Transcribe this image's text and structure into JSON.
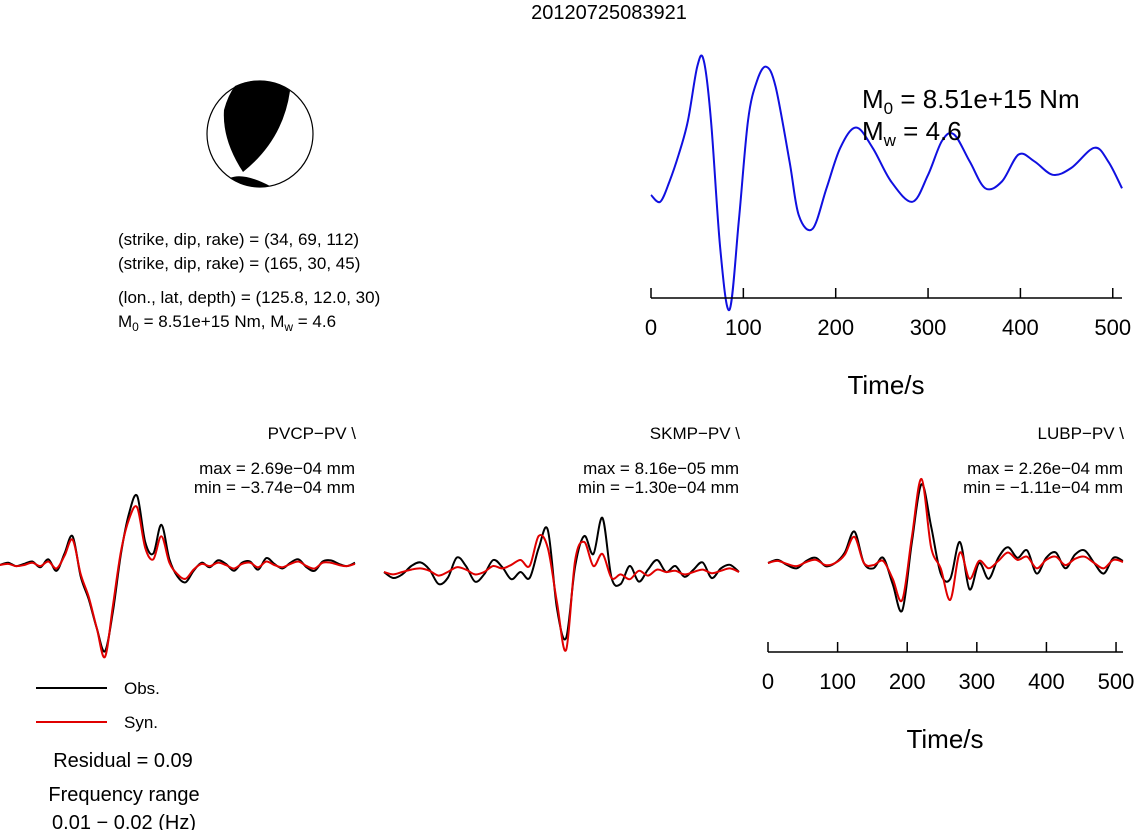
{
  "title": "20120725083921",
  "colors": {
    "observed": "#000000",
    "synthetic": "#e00000",
    "stf": "#1010e0",
    "fault_compression": "#000000"
  },
  "mechanism": {
    "plane1": "(strike, dip, rake) = (34, 69, 112)",
    "plane2": "(strike, dip, rake) = (165, 30, 45)",
    "location": "(lon., lat, depth) = (125.8, 12.0, 30)",
    "moment_text": {
      "m0_label": "M",
      "m0_sub": "0",
      "m0_value": " = 8.51e+15 Nm, M",
      "mw_sub": "w",
      "mw_value": " = 4.6"
    }
  },
  "stf_panel": {
    "m0": {
      "label": "M",
      "sub": "0",
      "value": " = 8.51e+15 Nm"
    },
    "mw": {
      "label": "M",
      "sub": "w",
      "value": " = 4.6"
    },
    "xlabel": "Time/s"
  },
  "legend": {
    "obs": "Obs.",
    "syn": "Syn."
  },
  "residual": "Residual = 0.09",
  "freq_label": "Frequency range",
  "freq_range": "0.01 − 0.02 (Hz)",
  "stations": [
    {
      "name": "PVCP−PV \\",
      "max": "max = 2.69e−04 mm",
      "min": "min = −3.74e−04 mm"
    },
    {
      "name": "SKMP−PV \\",
      "max": "max = 8.16e−05 mm",
      "min": "min = −1.30e−04 mm"
    },
    {
      "name": "LUBP−PV \\",
      "max": "max = 2.26e−04 mm",
      "min": "min = −1.11e−04 mm"
    }
  ],
  "waveform_axis": {
    "ticks": [
      "0",
      "100",
      "200",
      "300",
      "400",
      "500"
    ],
    "xlabel": "Time/s"
  },
  "chart_data": [
    {
      "type": "line",
      "title": "",
      "xlabel": "Time/s",
      "xlim": [
        0,
        510
      ],
      "x_ticks": [
        0,
        100,
        200,
        300,
        400,
        500
      ],
      "series": [
        {
          "x": [
            0,
            10,
            20,
            30,
            40,
            50,
            57,
            65,
            75,
            85,
            95,
            105,
            115,
            125,
            135,
            150,
            160,
            175,
            190,
            205,
            222,
            240,
            260,
            283,
            300,
            315,
            328,
            345,
            362,
            380,
            398,
            415,
            435,
            455,
            480,
            495,
            510
          ],
          "y": [
            0.0,
            -0.05,
            0.1,
            0.3,
            0.55,
            0.95,
            1.0,
            0.55,
            -0.4,
            -0.85,
            -0.2,
            0.55,
            0.85,
            0.95,
            0.8,
            0.25,
            -0.15,
            -0.25,
            0.05,
            0.35,
            0.5,
            0.35,
            0.1,
            -0.05,
            0.15,
            0.4,
            0.45,
            0.25,
            0.05,
            0.1,
            0.3,
            0.25,
            0.15,
            0.2,
            0.35,
            0.25,
            0.05
          ]
        }
      ]
    },
    {
      "type": "line",
      "title": "PVCP−PV \\",
      "x_units": "samples",
      "series": [
        {
          "name": "Obs.",
          "values": [
            0,
            0.02,
            -0.01,
            0.01,
            0.03,
            -0.02,
            0.05,
            -0.05,
            0.1,
            0.25,
            -0.1,
            -0.3,
            -0.55,
            -0.75,
            -0.4,
            0.1,
            0.45,
            0.6,
            0.2,
            0.1,
            0.35,
            0.05,
            -0.1,
            -0.15,
            -0.05,
            0.02,
            -0.02,
            0.04,
            0.01,
            -0.05,
            0.02,
            0.03,
            -0.04,
            0.06,
            0.01,
            -0.03,
            0.02,
            0.05,
            -0.02,
            -0.05,
            0.03,
            0.04,
            0.01,
            -0.01,
            0.02
          ]
        },
        {
          "name": "Syn.",
          "values": [
            0,
            0.01,
            -0.01,
            0.0,
            0.02,
            -0.01,
            0.03,
            -0.03,
            0.08,
            0.22,
            -0.08,
            -0.28,
            -0.55,
            -0.8,
            -0.35,
            0.12,
            0.4,
            0.5,
            0.15,
            0.05,
            0.25,
            0.02,
            -0.08,
            -0.12,
            -0.04,
            0.01,
            -0.01,
            0.02,
            0.0,
            -0.03,
            0.01,
            0.02,
            -0.02,
            0.03,
            0.0,
            -0.02,
            0.01,
            0.03,
            -0.01,
            -0.03,
            0.02,
            0.02,
            0.0,
            -0.01,
            0.01
          ]
        }
      ]
    },
    {
      "type": "line",
      "title": "SKMP−PV \\",
      "x_units": "samples",
      "series": [
        {
          "name": "Obs.",
          "values": [
            0,
            -0.05,
            -0.02,
            0.05,
            0.08,
            0.02,
            -0.1,
            -0.05,
            0.12,
            0.05,
            -0.08,
            -0.02,
            0.1,
            0.04,
            -0.06,
            0.0,
            -0.05,
            0.2,
            0.35,
            -0.3,
            -0.55,
            0.05,
            0.3,
            0.15,
            0.45,
            -0.05,
            -0.1,
            0.05,
            -0.08,
            0.02,
            0.1,
            0.0,
            0.05,
            -0.04,
            0.02,
            0.08,
            -0.05,
            0.03,
            0.06,
            0.0
          ]
        },
        {
          "name": "Syn.",
          "values": [
            0,
            -0.02,
            0.0,
            0.02,
            0.03,
            0.01,
            -0.03,
            0.0,
            0.04,
            0.02,
            -0.02,
            0.0,
            0.05,
            0.03,
            0.06,
            0.1,
            0.05,
            0.3,
            0.2,
            -0.25,
            -0.65,
            0.1,
            0.25,
            0.05,
            0.15,
            -0.05,
            -0.02,
            -0.06,
            0.01,
            -0.03,
            0.02,
            0.0,
            0.01,
            -0.02,
            0.0,
            0.02,
            -0.01,
            0.01,
            0.03,
            0.0
          ]
        }
      ]
    },
    {
      "type": "line",
      "title": "LUBP−PV \\",
      "xlabel": "Time/s",
      "xlim": [
        0,
        510
      ],
      "x_ticks": [
        0,
        100,
        200,
        300,
        400,
        500
      ],
      "series": [
        {
          "name": "Obs.",
          "values": [
            0,
            0.03,
            -0.02,
            -0.05,
            0.02,
            0.05,
            -0.03,
            0.0,
            0.1,
            0.3,
            0.0,
            -0.05,
            0.05,
            -0.2,
            -0.45,
            0.2,
            0.75,
            0.35,
            -0.1,
            -0.15,
            0.2,
            -0.25,
            0.0,
            -0.15,
            0.05,
            0.15,
            0.05,
            0.12,
            -0.1,
            0.05,
            0.1,
            -0.05,
            0.08,
            0.12,
            0.0,
            -0.1,
            0.05,
            0.02
          ]
        },
        {
          "name": "Syn.",
          "values": [
            0,
            0.02,
            -0.01,
            -0.03,
            0.01,
            0.03,
            -0.02,
            0.0,
            0.08,
            0.25,
            0.0,
            -0.02,
            0.02,
            -0.15,
            -0.35,
            0.25,
            0.8,
            0.15,
            -0.05,
            -0.35,
            0.1,
            -0.15,
            0.02,
            -0.05,
            0.02,
            0.1,
            0.03,
            0.06,
            -0.05,
            0.03,
            0.06,
            -0.02,
            0.04,
            0.06,
            0.0,
            -0.05,
            0.03,
            0.01
          ]
        }
      ]
    }
  ]
}
